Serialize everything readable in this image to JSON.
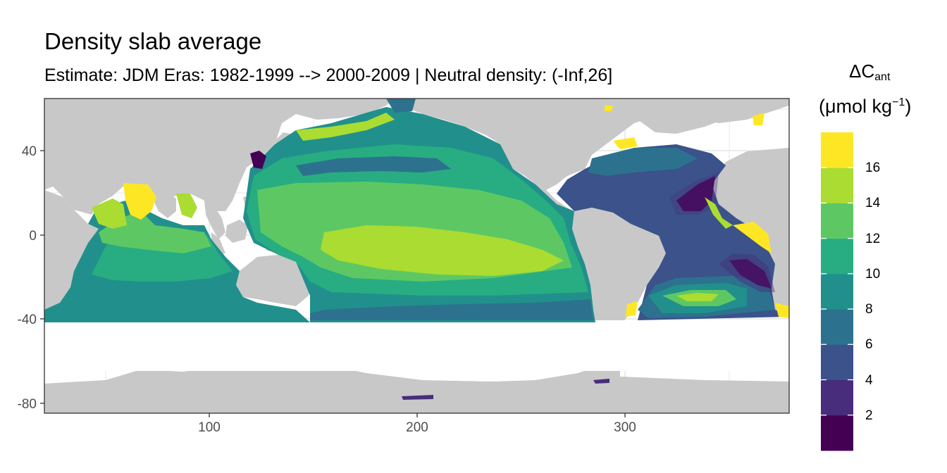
{
  "title": "Density slab average",
  "subtitle": "Estimate: JDM Eras: 1982-1999 --> 2000-2009 | Neutral density: (-Inf,26]",
  "legend": {
    "title_main": "ΔC",
    "title_sub": "ant",
    "unit_pre": "(μmol kg",
    "unit_sup": "−1",
    "unit_post": ")",
    "breaks": [
      "2",
      "4",
      "6",
      "8",
      "10",
      "12",
      "14",
      "16"
    ],
    "colors": [
      "#440154",
      "#472D7B",
      "#3B528B",
      "#2C728E",
      "#21908C",
      "#27AD81",
      "#5DC863",
      "#AADC32",
      "#FDE725"
    ]
  },
  "colors": {
    "land": "#C8C8C8",
    "no_data": "#FFFFFF",
    "grid": "#EBEBEB",
    "panel_border": "#333333"
  },
  "axes": {
    "x_ticks": [
      "100",
      "200",
      "300"
    ],
    "y_ticks": [
      "40",
      "0",
      "-40",
      "-80"
    ]
  }
}
